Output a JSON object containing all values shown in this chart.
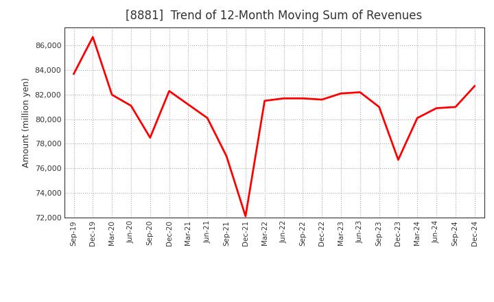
{
  "title": "[8881]  Trend of 12-Month Moving Sum of Revenues",
  "ylabel": "Amount (million yen)",
  "line_color": "#FF0000",
  "line_width": 2.0,
  "background_color": "#FFFFFF",
  "plot_background_color": "#FFFFFF",
  "grid_color": "#AAAAAA",
  "grid_style": "dotted",
  "ylim": [
    72000,
    87500
  ],
  "yticks": [
    72000,
    74000,
    76000,
    78000,
    80000,
    82000,
    84000,
    86000
  ],
  "x_labels": [
    "Sep-19",
    "Dec-19",
    "Mar-20",
    "Jun-20",
    "Sep-20",
    "Dec-20",
    "Mar-21",
    "Jun-21",
    "Sep-21",
    "Dec-21",
    "Mar-22",
    "Jun-22",
    "Sep-22",
    "Dec-22",
    "Mar-23",
    "Jun-23",
    "Sep-23",
    "Dec-23",
    "Mar-24",
    "Jun-24",
    "Sep-24",
    "Dec-24"
  ],
  "values": [
    83700,
    86700,
    82000,
    81100,
    78500,
    82300,
    81200,
    80100,
    77000,
    72100,
    81500,
    81700,
    81700,
    81600,
    82100,
    82200,
    81000,
    76700,
    80100,
    80900,
    81000,
    82700
  ],
  "title_color": "#333333",
  "title_fontsize": 12,
  "tick_label_color": "#333333",
  "ylabel_fontsize": 9,
  "ylabel_color": "#333333"
}
